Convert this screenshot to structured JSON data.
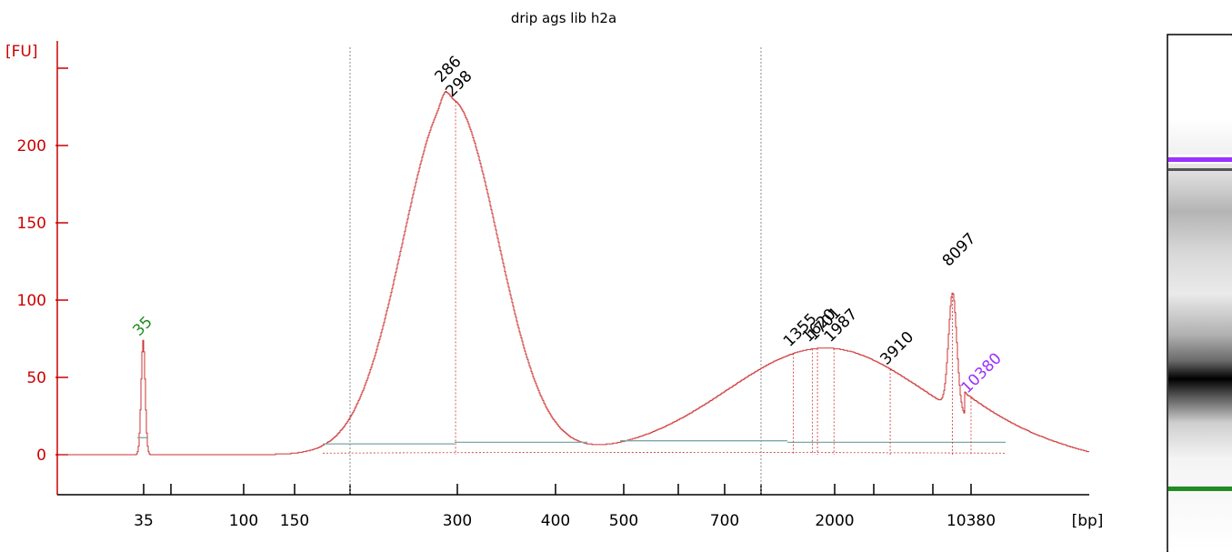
{
  "chart_data": {
    "type": "line",
    "title": "drip ags lib h2a",
    "ylabel": "[FU]",
    "xlabel": "[bp]",
    "ylim": [
      -22,
      262
    ],
    "yticks": [
      0,
      50,
      100,
      150,
      200
    ],
    "xticks": [
      "35",
      "",
      "100",
      "150",
      "",
      "300",
      "400",
      "500",
      "",
      "700",
      "",
      "2000",
      "",
      "",
      "10380"
    ],
    "x_unit": "bp",
    "peaks": [
      {
        "label": "35",
        "size_bp": 35,
        "fu": 74,
        "color": "#228b22"
      },
      {
        "label": "286",
        "size_bp": 286,
        "fu": 238,
        "color": "#000000"
      },
      {
        "label": "298",
        "size_bp": 298,
        "fu": 228,
        "color": "#000000"
      },
      {
        "label": "1355",
        "size_bp": 1355,
        "fu": 67,
        "color": "#000000"
      },
      {
        "label": "1620",
        "size_bp": 1620,
        "fu": 70,
        "color": "#000000"
      },
      {
        "label": "1701",
        "size_bp": 1701,
        "fu": 71,
        "color": "#000000"
      },
      {
        "label": "1987",
        "size_bp": 1987,
        "fu": 70,
        "color": "#000000"
      },
      {
        "label": "3910",
        "size_bp": 3910,
        "fu": 53,
        "color": "#000000"
      },
      {
        "label": "8097",
        "size_bp": 8097,
        "fu": 119,
        "color": "#000000"
      },
      {
        "label": "10380",
        "size_bp": 10380,
        "fu": 24,
        "color": "#9b30ff"
      }
    ],
    "markers": [
      {
        "name": "lower marker",
        "size_bp": 35,
        "color": "#228b22"
      },
      {
        "name": "upper marker",
        "size_bp": 10380,
        "color": "#9b30ff"
      }
    ],
    "region_boundaries_bp": [
      200,
      1000
    ],
    "grid": false
  },
  "colors": {
    "trace": "#cc3333",
    "axis": "#cc0000",
    "baseline": "#7fa6a6",
    "lower_marker": "#228b22",
    "upper_marker": "#9b30ff"
  }
}
